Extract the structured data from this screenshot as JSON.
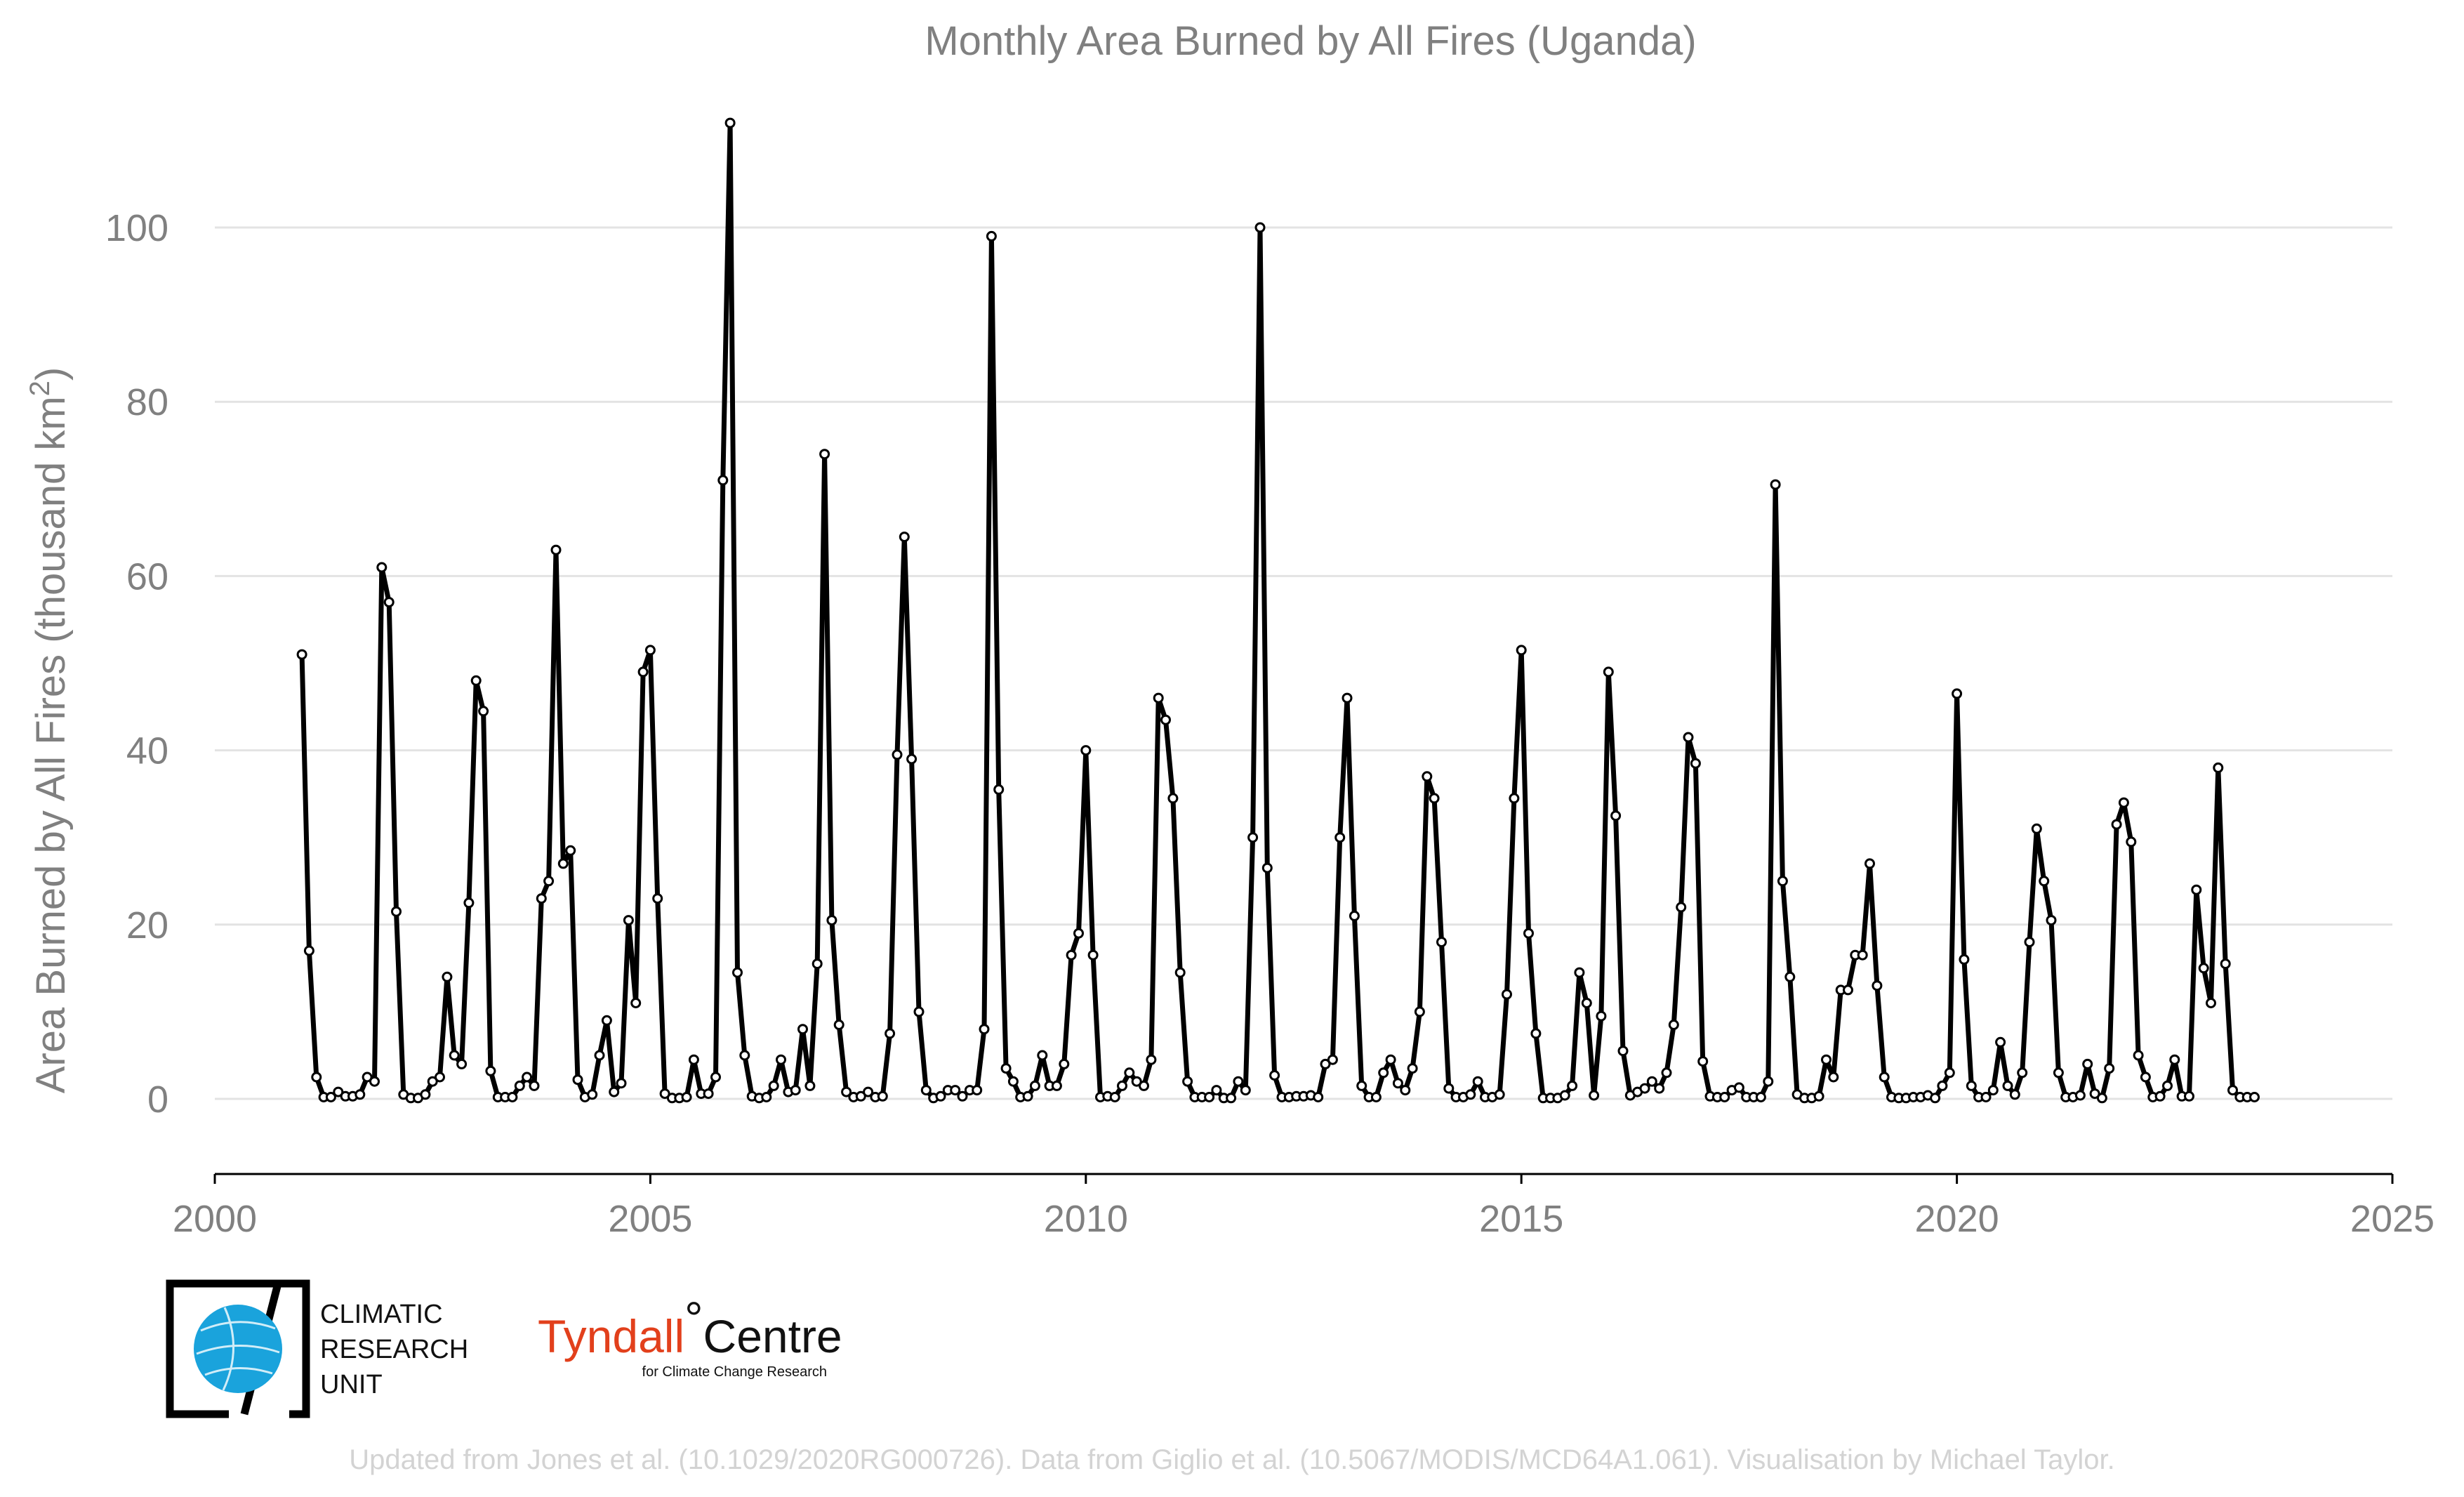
{
  "chart_data": {
    "type": "line",
    "title": "Monthly Area Burned by All Fires (Uganda)",
    "ylabel_prefix": "Area Burned by All Fires (thousand km",
    "ylabel_sup": "2",
    "ylabel_suffix": ")",
    "xlabel": "",
    "xlim": [
      2000,
      2025
    ],
    "ylim": [
      -9,
      112
    ],
    "x_ticks": [
      "2000",
      "2005",
      "2010",
      "2015",
      "2020",
      "2025"
    ],
    "y_ticks": [
      "0",
      "20",
      "40",
      "60",
      "80",
      "100"
    ],
    "grid": true,
    "series": [
      {
        "x_start": "2001-01",
        "x_step": "monthly",
        "values": [
          51,
          17,
          2.5,
          0.2,
          0.2,
          0.8,
          0.3,
          0.3,
          0.5,
          2.5,
          2,
          61,
          57,
          21.5,
          0.5,
          0.1,
          0.1,
          0.5,
          2,
          2.5,
          14,
          5,
          4,
          22.5,
          48,
          44.5,
          3.2,
          0.2,
          0.2,
          0.2,
          1.5,
          2.5,
          1.5,
          23,
          25,
          63,
          27,
          28.5,
          2.2,
          0.2,
          0.5,
          5,
          9,
          0.8,
          1.8,
          20.5,
          11,
          49,
          51.5,
          23,
          0.6,
          0.1,
          0.1,
          0.2,
          4.5,
          0.6,
          0.6,
          2.5,
          71,
          112,
          14.5,
          5,
          0.3,
          0.1,
          0.2,
          1.5,
          4.5,
          0.8,
          1,
          8,
          1.5,
          15.5,
          74,
          20.5,
          8.5,
          0.8,
          0.2,
          0.3,
          0.8,
          0.2,
          0.3,
          7.5,
          39.5,
          64.5,
          39,
          10,
          1,
          0.1,
          0.3,
          1,
          1,
          0.3,
          1,
          1,
          8,
          99,
          35.5,
          3.5,
          2,
          0.2,
          0.3,
          1.5,
          5,
          1.5,
          1.5,
          4,
          16.5,
          19,
          40,
          16.5,
          0.2,
          0.3,
          0.2,
          1.5,
          3,
          2,
          1.5,
          4.5,
          46,
          43.5,
          34.5,
          14.5,
          2,
          0.2,
          0.2,
          0.2,
          1,
          0.1,
          0.1,
          2,
          1,
          30,
          100,
          26.5,
          2.7,
          0.2,
          0.2,
          0.3,
          0.3,
          0.4,
          0.2,
          4,
          4.5,
          30,
          46,
          21,
          1.5,
          0.2,
          0.2,
          3,
          4.5,
          1.8,
          1,
          3.5,
          10,
          37,
          34.5,
          18,
          1.2,
          0.2,
          0.2,
          0.5,
          2,
          0.2,
          0.2,
          0.5,
          12,
          34.5,
          51.5,
          19,
          7.5,
          0.1,
          0.1,
          0.1,
          0.4,
          1.5,
          14.5,
          11,
          0.4,
          9.5,
          49,
          32.5,
          5.5,
          0.4,
          0.8,
          1.2,
          2,
          1.2,
          3,
          8.5,
          22,
          41.5,
          38.5,
          4.3,
          0.3,
          0.2,
          0.2,
          1,
          1.3,
          0.2,
          0.2,
          0.2,
          2,
          70.5,
          25,
          14,
          0.5,
          0.1,
          0.1,
          0.3,
          4.5,
          2.5,
          12.5,
          12.5,
          16.5,
          16.5,
          27,
          13,
          2.5,
          0.2,
          0.1,
          0.1,
          0.2,
          0.2,
          0.4,
          0.1,
          1.5,
          3,
          46.5,
          16,
          1.5,
          0.2,
          0.2,
          1,
          6.5,
          1.5,
          0.5,
          3,
          18,
          31,
          25,
          20.5,
          3,
          0.2,
          0.2,
          0.4,
          4,
          0.6,
          0.1,
          3.5,
          31.5,
          34,
          29.5,
          5,
          2.5,
          0.2,
          0.3,
          1.5,
          4.5,
          0.3,
          0.3,
          24,
          15,
          11,
          38,
          15.5,
          1,
          0.2,
          0.2,
          0.2
        ]
      }
    ]
  },
  "logos": {
    "cru_line1": "CLIMATIC",
    "cru_line2": "RESEARCH",
    "cru_line3": "UNIT",
    "tyndall_part1": "Tyndall",
    "tyndall_degree": "°",
    "tyndall_part2": "Centre",
    "tyndall_sub": "for Climate Change Research"
  },
  "credit": "Updated from Jones et al. (10.1029/2020RG000726). Data from Giglio et al. (10.5067/MODIS/MCD64A1.061). Visualisation by Michael Taylor.",
  "colors": {
    "line": "#000000",
    "text_gray": "#808080",
    "grid": "#e3e3e3",
    "tyndall_red": "#e2401c",
    "cru_blue": "#1aa3dc"
  }
}
